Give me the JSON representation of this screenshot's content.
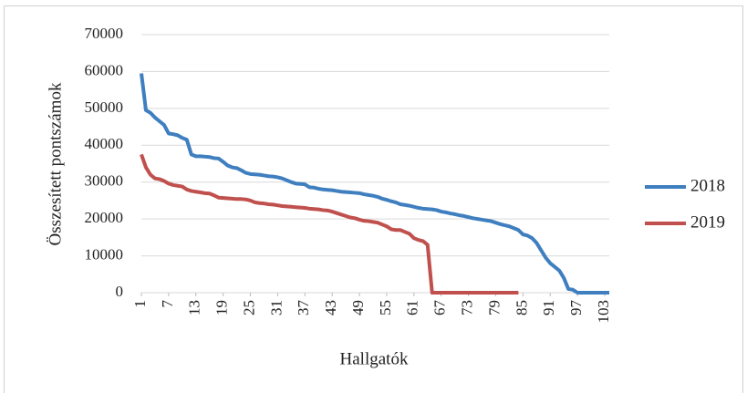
{
  "chart_data": {
    "type": "line",
    "x_label": "Hallgatók",
    "y_label": "Összesített pontszámok",
    "x": [
      1,
      2,
      3,
      4,
      5,
      6,
      7,
      8,
      9,
      10,
      11,
      12,
      13,
      14,
      15,
      16,
      17,
      18,
      19,
      20,
      21,
      22,
      23,
      24,
      25,
      26,
      27,
      28,
      29,
      30,
      31,
      32,
      33,
      34,
      35,
      36,
      37,
      38,
      39,
      40,
      41,
      42,
      43,
      44,
      45,
      46,
      47,
      48,
      49,
      50,
      51,
      52,
      53,
      54,
      55,
      56,
      57,
      58,
      59,
      60,
      61,
      62,
      63,
      64,
      65,
      66,
      67,
      68,
      69,
      70,
      71,
      72,
      73,
      74,
      75,
      76,
      77,
      78,
      79,
      80,
      81,
      82,
      83,
      84,
      85,
      86,
      87,
      88,
      89,
      90,
      91,
      92,
      93,
      94,
      95,
      96,
      97,
      98,
      99,
      100,
      101,
      102,
      103,
      104
    ],
    "series": [
      {
        "name": "2018",
        "color": "#3f7fc0",
        "values": [
          59500,
          49500,
          48800,
          47500,
          46500,
          45500,
          43200,
          43000,
          42700,
          42000,
          41500,
          37500,
          37000,
          37000,
          36900,
          36800,
          36500,
          36400,
          35500,
          34500,
          34000,
          33800,
          33200,
          32500,
          32200,
          32100,
          32000,
          31800,
          31600,
          31500,
          31300,
          31000,
          30500,
          30000,
          29600,
          29500,
          29400,
          28600,
          28500,
          28200,
          28000,
          27900,
          27800,
          27600,
          27400,
          27300,
          27200,
          27100,
          27000,
          26700,
          26500,
          26300,
          26000,
          25500,
          25200,
          24800,
          24500,
          24000,
          23800,
          23600,
          23300,
          23000,
          22800,
          22700,
          22600,
          22400,
          22000,
          21800,
          21500,
          21300,
          21000,
          20800,
          20500,
          20200,
          20000,
          19800,
          19600,
          19400,
          19000,
          18600,
          18300,
          18000,
          17500,
          17000,
          15800,
          15500,
          14800,
          13500,
          11500,
          9500,
          8000,
          7000,
          6000,
          4000,
          1000,
          800,
          0,
          0,
          0,
          0,
          0,
          0,
          0,
          0
        ]
      },
      {
        "name": "2019",
        "color": "#c0504d",
        "values": [
          37500,
          34000,
          32000,
          31000,
          30800,
          30300,
          29600,
          29200,
          29000,
          28800,
          28000,
          27600,
          27400,
          27200,
          27000,
          26900,
          26400,
          25800,
          25700,
          25600,
          25500,
          25400,
          25400,
          25300,
          25000,
          24500,
          24300,
          24200,
          24000,
          23900,
          23700,
          23500,
          23400,
          23300,
          23200,
          23100,
          23000,
          22800,
          22700,
          22600,
          22400,
          22300,
          22000,
          21600,
          21200,
          20800,
          20400,
          20200,
          19800,
          19500,
          19400,
          19200,
          19000,
          18500,
          18000,
          17200,
          17000,
          17000,
          16500,
          16000,
          14800,
          14300,
          14000,
          13000,
          0,
          0,
          0,
          0,
          0,
          0,
          0,
          0,
          0,
          0,
          0,
          0,
          0,
          0,
          0,
          0,
          0,
          0,
          0,
          0,
          null,
          null,
          null,
          null,
          null,
          null,
          null,
          null,
          null,
          null,
          null,
          null,
          null,
          null,
          null,
          null,
          null,
          null,
          null,
          null
        ]
      }
    ],
    "xlim": [
      1,
      104
    ],
    "xticks": [
      1,
      7,
      13,
      19,
      25,
      31,
      37,
      43,
      49,
      55,
      61,
      67,
      73,
      79,
      85,
      91,
      97,
      103
    ],
    "ylim": [
      0,
      70000
    ],
    "yticks": [
      0,
      10000,
      20000,
      30000,
      40000,
      50000,
      60000,
      70000
    ],
    "grid": true,
    "legend": "right"
  }
}
